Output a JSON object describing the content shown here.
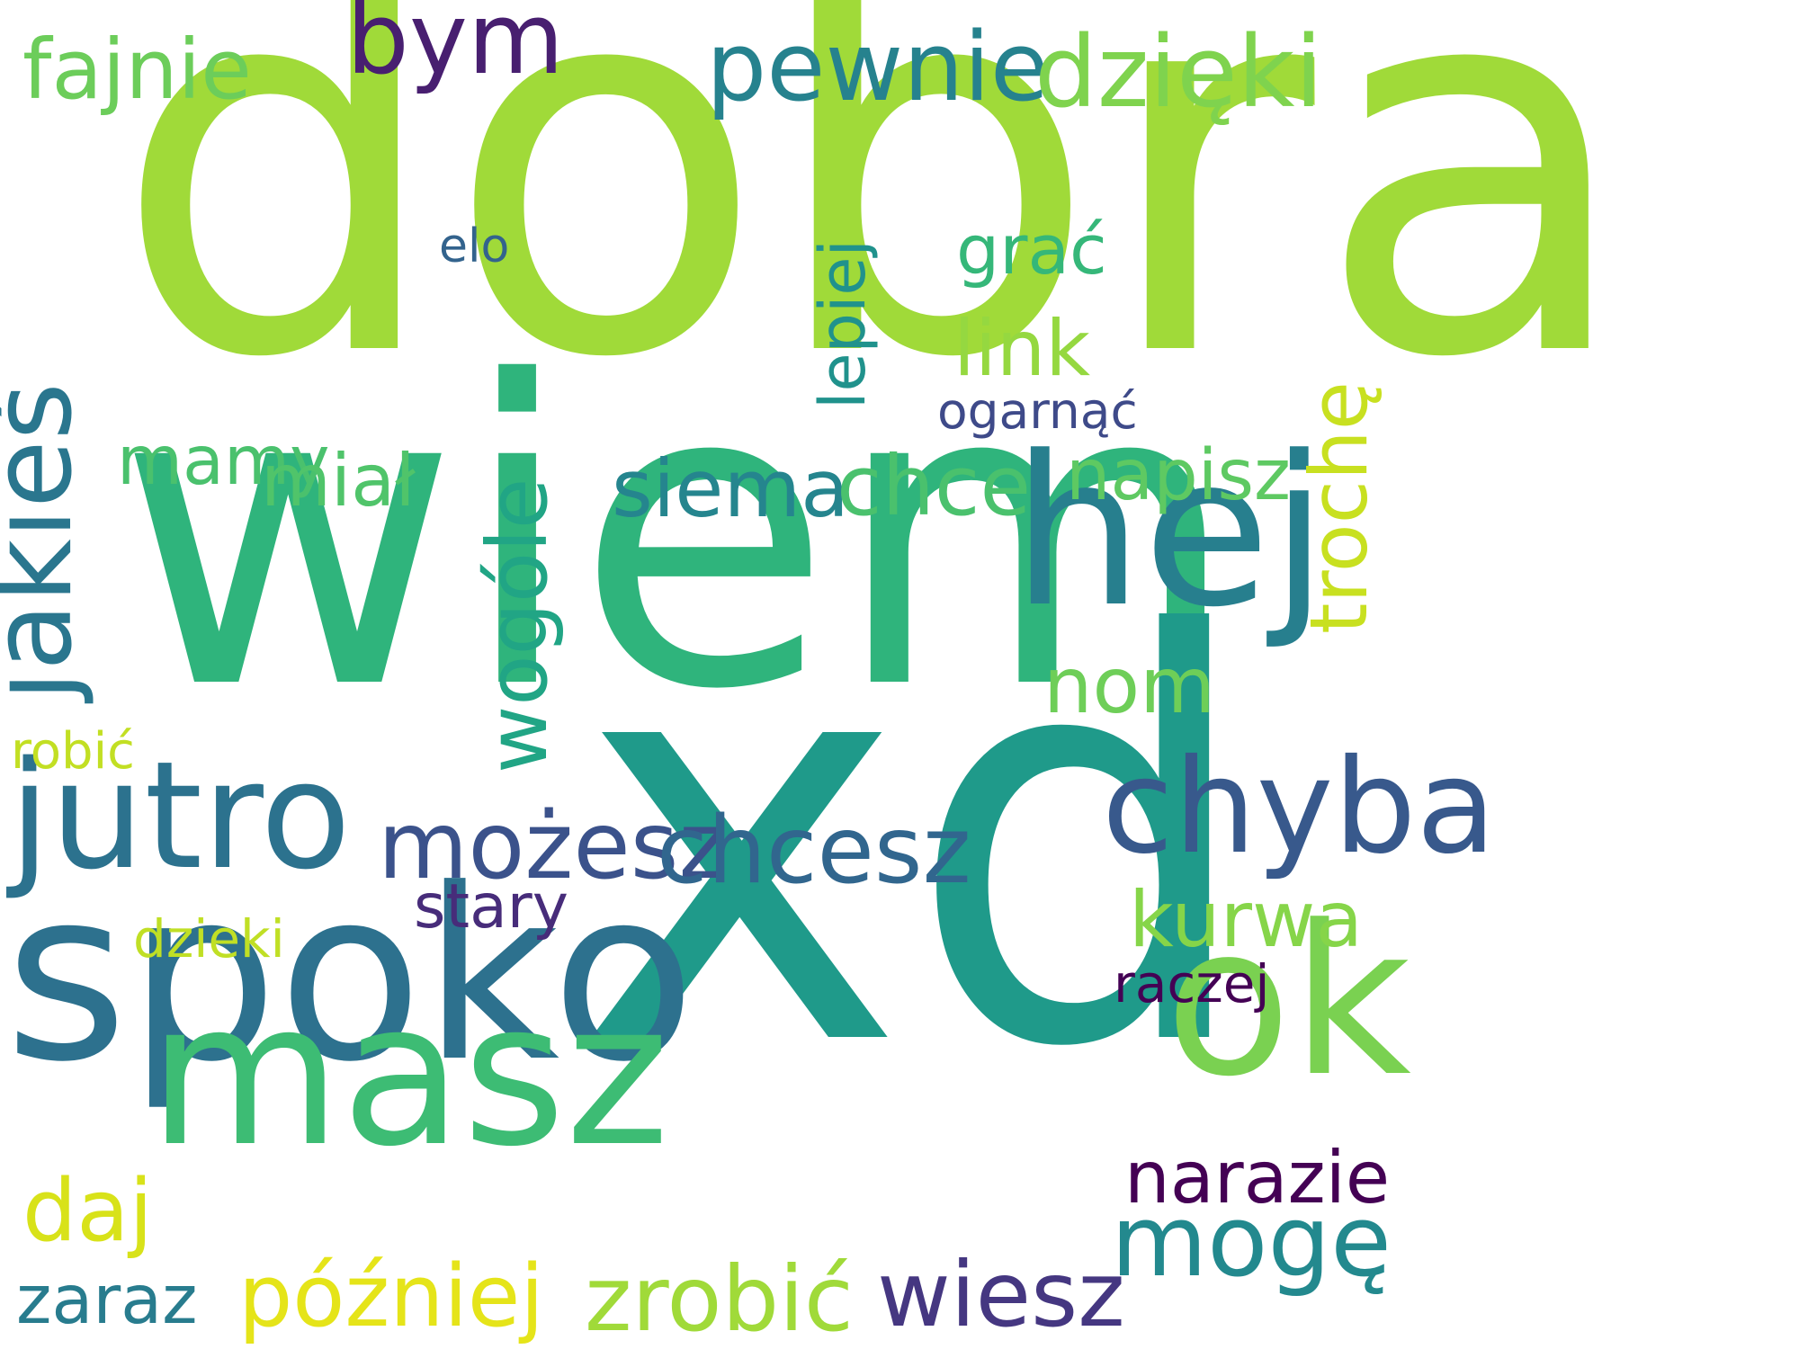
{
  "words": [
    {
      "text": "dobra",
      "color": "#a0da39"
    },
    {
      "text": "wiem",
      "color": "#2fb47c"
    },
    {
      "text": "xd",
      "color": "#1f9a8a"
    },
    {
      "text": "spoko",
      "color": "#2d718e"
    },
    {
      "text": "hej",
      "color": "#277f8e"
    },
    {
      "text": "masz",
      "color": "#3dbc74"
    },
    {
      "text": "ok",
      "color": "#7ad151"
    },
    {
      "text": "jutro",
      "color": "#2c728e"
    },
    {
      "text": "chyba",
      "color": "#38598c"
    },
    {
      "text": "jakieś",
      "color": "#2a768e"
    },
    {
      "text": "pewnie",
      "color": "#26828e"
    },
    {
      "text": "dzięki",
      "color": "#7fd34e"
    },
    {
      "text": "możesz",
      "color": "#3b528b"
    },
    {
      "text": "chcesz",
      "color": "#31668e"
    },
    {
      "text": "mogę",
      "color": "#23898e"
    },
    {
      "text": "zrobić",
      "color": "#a0da39"
    },
    {
      "text": "wiesz",
      "color": "#453781"
    },
    {
      "text": "później",
      "color": "#e5e419"
    },
    {
      "text": "bym",
      "color": "#481f70"
    },
    {
      "text": "trochę",
      "color": "#c8e020"
    },
    {
      "text": "wogóle",
      "color": "#21a585"
    },
    {
      "text": "fajnie",
      "color": "#6ccd5a"
    },
    {
      "text": "siema",
      "color": "#25858e"
    },
    {
      "text": "chce",
      "color": "#4ac16d"
    },
    {
      "text": "daj",
      "color": "#d8e219"
    },
    {
      "text": "kurwa",
      "color": "#86d549"
    },
    {
      "text": "narazie",
      "color": "#440154"
    },
    {
      "text": "zaraz",
      "color": "#287c8e"
    },
    {
      "text": "nom",
      "color": "#6ece58"
    },
    {
      "text": "link",
      "color": "#95d840"
    },
    {
      "text": "mamy",
      "color": "#4ac16d"
    },
    {
      "text": "miał",
      "color": "#50c46a"
    },
    {
      "text": "napisz",
      "color": "#5ec962"
    },
    {
      "text": "grać",
      "color": "#35b779"
    },
    {
      "text": "lepiej",
      "color": "#20928c"
    },
    {
      "text": "stary",
      "color": "#472c7a"
    },
    {
      "text": "ogarnąć",
      "color": "#3e4a89"
    },
    {
      "text": "raczej",
      "color": "#440154"
    },
    {
      "text": "dzieki",
      "color": "#c0df25"
    },
    {
      "text": "robić",
      "color": "#c2df23"
    },
    {
      "text": "elo",
      "color": "#33638d"
    }
  ]
}
